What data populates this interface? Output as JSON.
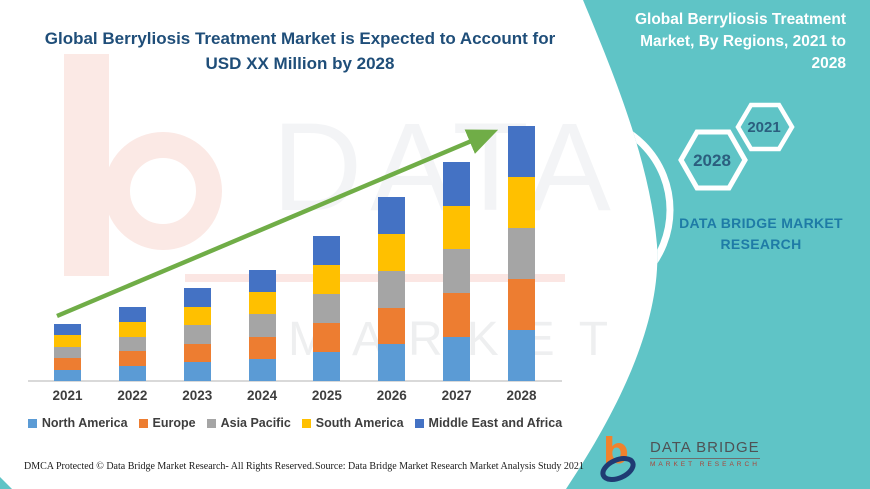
{
  "header": {
    "title": "Global Berryliosis Treatment Market is Expected to Account for\nUSD XX Million by 2028"
  },
  "right_panel": {
    "title": "Global Berryliosis Treatment\nMarket, By Regions, 2021 to\n2028",
    "hexagon_back_label": "2028",
    "hexagon_front_label": "2021",
    "brand_wordmark": "DATA BRIDGE MARKET\nRESEARCH",
    "panel_color": "#5fc4c6",
    "hexagon_text_color": "#2b5e7e"
  },
  "chart_data": {
    "type": "bar",
    "stacked": true,
    "title": "Global Berryliosis Treatment Market, By Regions, 2021 to 2028",
    "categories": [
      "2021",
      "2022",
      "2023",
      "2024",
      "2025",
      "2026",
      "2027",
      "2028"
    ],
    "series": [
      {
        "name": "North America",
        "color": "#5B9BD5",
        "values": [
          4.5,
          5.8,
          7.3,
          8.7,
          11.4,
          14.4,
          17.2,
          20
        ]
      },
      {
        "name": "Europe",
        "color": "#ED7D31",
        "values": [
          4.5,
          5.8,
          7.3,
          8.7,
          11.4,
          14.4,
          17.2,
          20
        ]
      },
      {
        "name": "Asia Pacific",
        "color": "#A5A5A5",
        "values": [
          4.5,
          5.8,
          7.3,
          8.7,
          11.4,
          14.4,
          17.2,
          20
        ]
      },
      {
        "name": "South America",
        "color": "#FFC000",
        "values": [
          4.5,
          5.8,
          7.3,
          8.7,
          11.4,
          14.4,
          17.2,
          20
        ]
      },
      {
        "name": "Middle East and Africa",
        "color": "#4472C4",
        "values": [
          4.5,
          5.8,
          7.3,
          8.7,
          11.4,
          14.4,
          17.2,
          20
        ]
      }
    ],
    "totals": [
      22.5,
      29,
      36.5,
      43.5,
      57,
      72,
      86,
      100
    ],
    "value_axis_visible": false,
    "legend_position": "bottom",
    "grid": false,
    "trend_arrow": {
      "present": true,
      "color": "#70AD47",
      "direction": "up-right"
    }
  },
  "watermark": {
    "text1": "DATA BRIDGE",
    "text2": "MARKET RESEARCH"
  },
  "footer": {
    "dmca": "DMCA Protected © Data Bridge Market Research- All Rights Reserved.",
    "source": "Source: Data Bridge Market Research Market Analysis Study 2021",
    "logo_name": "DATA BRIDGE",
    "logo_sub": "MARKET RESEARCH"
  }
}
